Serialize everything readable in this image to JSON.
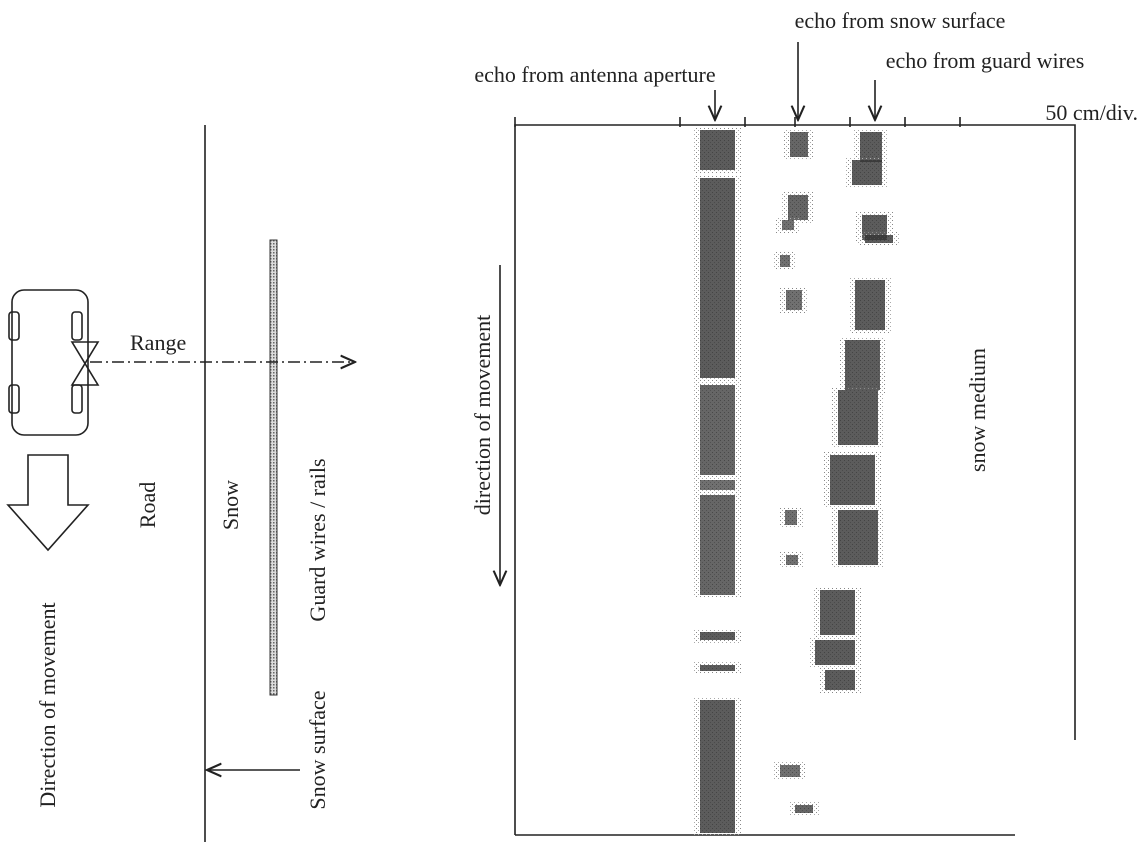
{
  "left_diagram": {
    "range_label": "Range",
    "road_label": "Road",
    "snow_label": "Snow",
    "guard_label": "Guard wires / rails",
    "movement_label": "Direction of movement",
    "snow_surface_label": "Snow surface"
  },
  "radar_plot": {
    "echo_snow_surface": "echo from snow surface",
    "echo_antenna": "echo from antenna aperture",
    "echo_guard_wires": "echo from guard wires",
    "scale_label": "50 cm/div.",
    "movement_label": "direction of movement",
    "medium_label": "snow medium"
  }
}
